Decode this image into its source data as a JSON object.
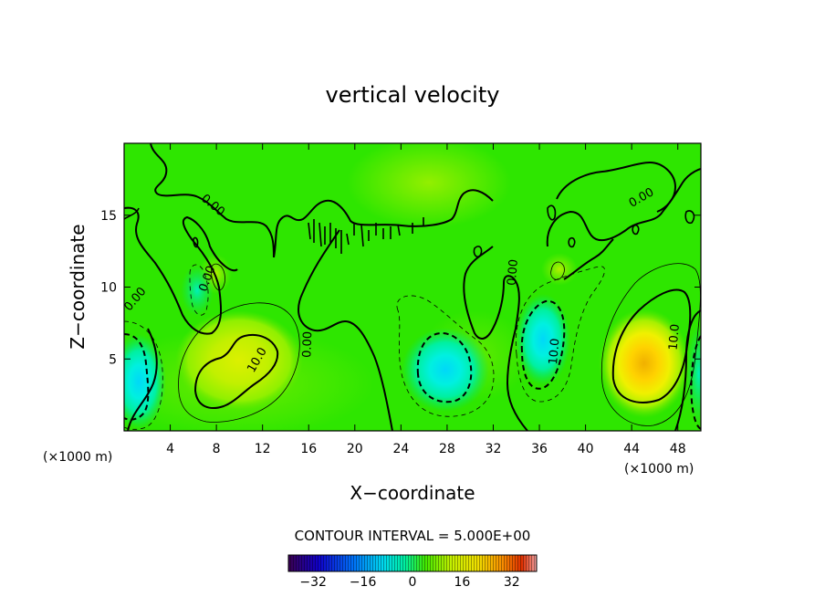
{
  "chart_data": {
    "type": "contour",
    "title": "vertical velocity",
    "xlabel": "X−coordinate",
    "ylabel": "Z−coordinate",
    "x_unit_left": "(×1000 m)",
    "x_unit_right": "(×1000 m)",
    "xlim": [
      0,
      50
    ],
    "ylim": [
      0,
      20
    ],
    "x_ticks": [
      4,
      8,
      12,
      16,
      20,
      24,
      28,
      32,
      36,
      40,
      44,
      48
    ],
    "x_tick_labels": [
      "4",
      "8",
      "12",
      "16",
      "20",
      "24",
      "28",
      "32",
      "36",
      "40",
      "44",
      "48"
    ],
    "y_ticks": [
      5,
      10,
      15
    ],
    "y_tick_labels": [
      "5",
      "10",
      "15"
    ],
    "contour_interval_text": "CONTOUR INTERVAL = 5.000E+00",
    "contour_labels": [
      {
        "text": "0.00",
        "x": 7.5,
        "z": 15.5,
        "angle": 40
      },
      {
        "text": "0.00",
        "x": 7.5,
        "z": 10.5,
        "angle": -70
      },
      {
        "text": "0.00",
        "x": 1.2,
        "z": 9.0,
        "angle": -50
      },
      {
        "text": "0.00",
        "x": 16.2,
        "z": 6.0,
        "angle": -88
      },
      {
        "text": "0.00",
        "x": 34.0,
        "z": 11.0,
        "angle": -85
      },
      {
        "text": "0.00",
        "x": 45.0,
        "z": 16.0,
        "angle": -30
      },
      {
        "text": "10.0",
        "x": 11.8,
        "z": 4.8,
        "angle": -60
      },
      {
        "text": "10.0",
        "x": 37.6,
        "z": 5.5,
        "angle": -85
      },
      {
        "text": "10.0",
        "x": 48.0,
        "z": 6.5,
        "angle": -85
      }
    ],
    "fields": {
      "positive_cells": [
        {
          "x": 45.0,
          "z": 4.5,
          "peak": 30
        },
        {
          "x": 10.0,
          "z": 4.5,
          "peak": 14
        },
        {
          "x": 37.0,
          "z": 11.0,
          "peak": 6
        },
        {
          "x": 8.0,
          "z": 11.0,
          "peak": 5
        }
      ],
      "negative_cells": [
        {
          "x": 1.5,
          "z": 3.5,
          "peak": -18
        },
        {
          "x": 28.0,
          "z": 4.0,
          "peak": -15
        },
        {
          "x": 36.0,
          "z": 6.5,
          "peak": -17
        },
        {
          "x": 6.0,
          "z": 10.5,
          "peak": -6
        },
        {
          "x": 49.7,
          "z": 3.5,
          "peak": -9
        }
      ]
    },
    "colorbar": {
      "min": -40,
      "max": 40,
      "tick_values": [
        -32,
        -16,
        0,
        16,
        32
      ],
      "tick_labels": [
        "−32",
        "−16",
        "0",
        "16",
        "32"
      ]
    },
    "colors": {
      "background": "#00e000",
      "contour": "#000000"
    }
  }
}
